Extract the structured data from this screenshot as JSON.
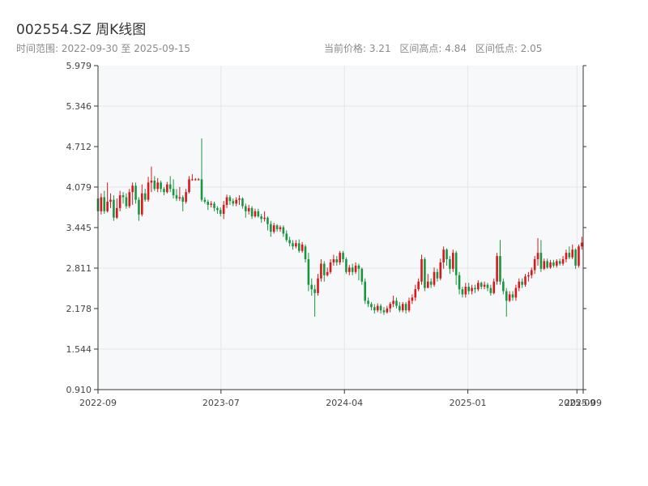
{
  "header": {
    "title": "002554.SZ 周K线图",
    "range_label": "时间范围: 2022-09-30 至 2025-09-15",
    "price_label": "当前价格: 3.21",
    "high_label": "区间高点: 4.84",
    "low_label": "区间低点: 2.05"
  },
  "colors": {
    "up": "#d7191c",
    "down": "#1a9641",
    "plot_bg": "#f7f8fa",
    "grid": "#e4e6ea",
    "axis": "#333333"
  },
  "chart_data": {
    "type": "candlestick",
    "title": "002554.SZ 周K线图",
    "xlabel": "",
    "ylabel": "",
    "ylim": [
      0.91,
      5.979
    ],
    "xlim": [
      "2022-09-30",
      "2025-09-15"
    ],
    "yticks": [
      "0.910",
      "1.544",
      "2.178",
      "2.811",
      "3.445",
      "4.079",
      "4.712",
      "5.346",
      "5.979"
    ],
    "xticks": [
      {
        "date": "2022-09-30",
        "label": "2022-09"
      },
      {
        "date": "2023-07-01",
        "label": "2023-07"
      },
      {
        "date": "2024-04-01",
        "label": "2024-04"
      },
      {
        "date": "2025-01-01",
        "label": "2025-01"
      },
      {
        "date": "2025-09-01",
        "label": "2025-09"
      },
      {
        "date": "2025-09-15",
        "label": "2025-09"
      }
    ],
    "grid": true,
    "candles": [
      [
        "2022-09-30",
        3.9,
        3.7,
        4.0,
        3.62
      ],
      [
        "2022-10-07",
        3.7,
        3.92,
        3.98,
        3.65
      ],
      [
        "2022-10-14",
        3.92,
        3.7,
        4.02,
        3.66
      ],
      [
        "2022-10-21",
        3.7,
        3.85,
        4.15,
        3.68
      ],
      [
        "2022-10-28",
        3.85,
        3.88,
        3.98,
        3.75
      ],
      [
        "2022-11-04",
        3.88,
        3.6,
        3.95,
        3.55
      ],
      [
        "2022-11-11",
        3.6,
        3.75,
        3.9,
        3.58
      ],
      [
        "2022-11-18",
        3.75,
        3.95,
        4.02,
        3.7
      ],
      [
        "2022-11-25",
        3.95,
        3.92,
        4.0,
        3.82
      ],
      [
        "2022-12-02",
        3.92,
        3.78,
        3.98,
        3.74
      ],
      [
        "2022-12-09",
        3.78,
        4.0,
        4.05,
        3.75
      ],
      [
        "2022-12-16",
        4.0,
        4.1,
        4.15,
        3.8
      ],
      [
        "2022-12-23",
        4.1,
        3.88,
        4.15,
        3.82
      ],
      [
        "2022-12-30",
        3.88,
        3.65,
        3.92,
        3.55
      ],
      [
        "2023-01-06",
        3.65,
        3.98,
        4.12,
        3.62
      ],
      [
        "2023-01-13",
        3.98,
        3.88,
        4.05,
        3.85
      ],
      [
        "2023-01-20",
        3.88,
        4.15,
        4.24,
        3.85
      ],
      [
        "2023-01-27",
        4.15,
        4.18,
        4.4,
        4.0
      ],
      [
        "2023-02-03",
        4.18,
        4.05,
        4.25,
        4.02
      ],
      [
        "2023-02-10",
        4.05,
        4.15,
        4.22,
        4.0
      ],
      [
        "2023-02-17",
        4.15,
        4.05,
        4.18,
        4.0
      ],
      [
        "2023-02-24",
        4.05,
        4.0,
        4.08,
        3.95
      ],
      [
        "2023-03-03",
        4.0,
        4.12,
        4.16,
        3.98
      ],
      [
        "2023-03-10",
        4.12,
        4.05,
        4.25,
        4.0
      ],
      [
        "2023-03-17",
        4.05,
        3.95,
        4.2,
        3.9
      ],
      [
        "2023-03-24",
        3.95,
        3.9,
        4.05,
        3.86
      ],
      [
        "2023-03-31",
        3.9,
        3.92,
        4.08,
        3.86
      ],
      [
        "2023-04-07",
        3.92,
        3.85,
        3.95,
        3.7
      ],
      [
        "2023-04-14",
        3.85,
        4.0,
        4.05,
        3.82
      ],
      [
        "2023-04-21",
        4.0,
        4.2,
        4.25,
        3.98
      ],
      [
        "2023-04-28",
        4.2,
        4.2,
        4.28,
        4.18
      ],
      [
        "2023-05-05",
        4.2,
        4.2,
        4.22,
        4.18
      ],
      [
        "2023-05-12",
        4.2,
        4.2,
        4.22,
        4.18
      ],
      [
        "2023-05-19",
        4.2,
        3.88,
        4.84,
        3.85
      ],
      [
        "2023-05-26",
        3.88,
        3.85,
        3.92,
        3.82
      ],
      [
        "2023-06-02",
        3.85,
        3.8,
        3.88,
        3.72
      ],
      [
        "2023-06-09",
        3.8,
        3.82,
        3.86,
        3.76
      ],
      [
        "2023-06-16",
        3.82,
        3.75,
        3.85,
        3.7
      ],
      [
        "2023-06-23",
        3.75,
        3.72,
        3.78,
        3.66
      ],
      [
        "2023-06-30",
        3.72,
        3.66,
        3.76,
        3.62
      ],
      [
        "2023-07-07",
        3.66,
        3.8,
        3.86,
        3.58
      ],
      [
        "2023-07-14",
        3.8,
        3.92,
        3.96,
        3.75
      ],
      [
        "2023-07-21",
        3.92,
        3.86,
        3.95,
        3.8
      ],
      [
        "2023-07-28",
        3.86,
        3.82,
        3.9,
        3.78
      ],
      [
        "2023-08-04",
        3.82,
        3.88,
        3.92,
        3.78
      ],
      [
        "2023-08-11",
        3.88,
        3.9,
        3.95,
        3.8
      ],
      [
        "2023-08-18",
        3.9,
        3.78,
        3.92,
        3.74
      ],
      [
        "2023-08-25",
        3.78,
        3.7,
        3.82,
        3.6
      ],
      [
        "2023-09-01",
        3.7,
        3.75,
        3.8,
        3.65
      ],
      [
        "2023-09-08",
        3.75,
        3.62,
        3.78,
        3.58
      ],
      [
        "2023-09-15",
        3.62,
        3.7,
        3.74,
        3.6
      ],
      [
        "2023-09-22",
        3.7,
        3.62,
        3.74,
        3.6
      ],
      [
        "2023-09-29",
        3.62,
        3.58,
        3.66,
        3.52
      ],
      [
        "2023-10-06",
        3.58,
        3.6,
        3.7,
        3.54
      ],
      [
        "2023-10-13",
        3.6,
        3.5,
        3.62,
        3.4
      ],
      [
        "2023-10-20",
        3.5,
        3.38,
        3.55,
        3.3
      ],
      [
        "2023-10-27",
        3.38,
        3.48,
        3.52,
        3.35
      ],
      [
        "2023-11-03",
        3.48,
        3.42,
        3.5,
        3.38
      ],
      [
        "2023-11-10",
        3.42,
        3.45,
        3.48,
        3.38
      ],
      [
        "2023-11-17",
        3.45,
        3.35,
        3.48,
        3.3
      ],
      [
        "2023-11-24",
        3.35,
        3.25,
        3.4,
        3.22
      ],
      [
        "2023-12-01",
        3.25,
        3.2,
        3.3,
        3.15
      ],
      [
        "2023-12-08",
        3.2,
        3.15,
        3.25,
        3.1
      ],
      [
        "2023-12-15",
        3.15,
        3.2,
        3.25,
        3.12
      ],
      [
        "2023-12-22",
        3.2,
        3.08,
        3.26,
        3.05
      ],
      [
        "2023-12-29",
        3.08,
        3.18,
        3.22,
        3.05
      ],
      [
        "2024-01-05",
        3.15,
        2.95,
        3.18,
        2.9
      ],
      [
        "2024-01-12",
        2.95,
        2.55,
        3.05,
        2.45
      ],
      [
        "2024-01-19",
        2.55,
        2.48,
        2.65,
        2.38
      ],
      [
        "2024-01-26",
        2.48,
        2.42,
        2.55,
        2.05
      ],
      [
        "2024-02-02",
        2.42,
        2.65,
        2.72,
        2.38
      ],
      [
        "2024-02-09",
        2.65,
        2.88,
        2.95,
        2.6
      ],
      [
        "2024-02-16",
        2.88,
        2.7,
        2.92,
        2.6
      ],
      [
        "2024-02-23",
        2.7,
        2.75,
        2.82,
        2.68
      ],
      [
        "2024-03-01",
        2.75,
        2.9,
        2.95,
        2.72
      ],
      [
        "2024-03-08",
        2.9,
        2.95,
        3.02,
        2.85
      ],
      [
        "2024-03-15",
        2.95,
        2.9,
        3.0,
        2.85
      ],
      [
        "2024-03-22",
        2.9,
        3.05,
        3.08,
        2.86
      ],
      [
        "2024-03-29",
        3.05,
        2.95,
        3.08,
        2.9
      ],
      [
        "2024-04-05",
        2.95,
        2.75,
        2.98,
        2.72
      ],
      [
        "2024-04-12",
        2.75,
        2.82,
        2.86,
        2.7
      ],
      [
        "2024-04-19",
        2.82,
        2.75,
        2.88,
        2.7
      ],
      [
        "2024-04-26",
        2.75,
        2.85,
        2.9,
        2.72
      ],
      [
        "2024-05-03",
        2.85,
        2.8,
        2.88,
        2.62
      ],
      [
        "2024-05-10",
        2.8,
        2.6,
        2.82,
        2.55
      ],
      [
        "2024-05-17",
        2.6,
        2.3,
        2.65,
        2.25
      ],
      [
        "2024-05-24",
        2.3,
        2.25,
        2.35,
        2.2
      ],
      [
        "2024-05-31",
        2.25,
        2.2,
        2.28,
        2.15
      ],
      [
        "2024-06-07",
        2.2,
        2.15,
        2.25,
        2.1
      ],
      [
        "2024-06-14",
        2.15,
        2.22,
        2.26,
        2.12
      ],
      [
        "2024-06-21",
        2.22,
        2.15,
        2.25,
        2.1
      ],
      [
        "2024-06-28",
        2.15,
        2.12,
        2.2,
        2.08
      ],
      [
        "2024-07-05",
        2.12,
        2.18,
        2.22,
        2.1
      ],
      [
        "2024-07-12",
        2.18,
        2.25,
        2.28,
        2.12
      ],
      [
        "2024-07-19",
        2.25,
        2.3,
        2.38,
        2.2
      ],
      [
        "2024-07-26",
        2.3,
        2.22,
        2.35,
        2.18
      ],
      [
        "2024-08-02",
        2.22,
        2.15,
        2.28,
        2.12
      ],
      [
        "2024-08-09",
        2.15,
        2.25,
        2.28,
        2.12
      ],
      [
        "2024-08-16",
        2.25,
        2.15,
        2.28,
        2.1
      ],
      [
        "2024-08-23",
        2.15,
        2.3,
        2.35,
        2.12
      ],
      [
        "2024-08-30",
        2.3,
        2.35,
        2.4,
        2.25
      ],
      [
        "2024-09-06",
        2.35,
        2.48,
        2.55,
        2.3
      ],
      [
        "2024-09-13",
        2.48,
        2.6,
        2.65,
        2.45
      ],
      [
        "2024-09-20",
        2.6,
        2.95,
        3.02,
        2.55
      ],
      [
        "2024-09-27",
        2.95,
        2.5,
        2.98,
        2.45
      ],
      [
        "2024-10-04",
        2.5,
        2.6,
        2.72,
        2.5
      ],
      [
        "2024-10-11",
        2.6,
        2.55,
        2.65,
        2.5
      ],
      [
        "2024-10-18",
        2.55,
        2.75,
        2.82,
        2.52
      ],
      [
        "2024-10-25",
        2.75,
        2.65,
        2.8,
        2.6
      ],
      [
        "2024-11-01",
        2.65,
        2.9,
        2.96,
        2.62
      ],
      [
        "2024-11-08",
        2.9,
        3.1,
        3.15,
        2.8
      ],
      [
        "2024-11-15",
        3.1,
        2.95,
        3.12,
        2.85
      ],
      [
        "2024-11-22",
        2.95,
        2.8,
        3.0,
        2.72
      ],
      [
        "2024-11-29",
        2.8,
        3.05,
        3.1,
        2.75
      ],
      [
        "2024-12-06",
        3.05,
        2.7,
        3.08,
        2.55
      ],
      [
        "2024-12-13",
        2.7,
        2.48,
        2.75,
        2.4
      ],
      [
        "2024-12-20",
        2.48,
        2.4,
        2.52,
        2.35
      ],
      [
        "2024-12-27",
        2.4,
        2.52,
        2.58,
        2.35
      ],
      [
        "2025-01-03",
        2.52,
        2.45,
        2.58,
        2.4
      ],
      [
        "2025-01-10",
        2.45,
        2.5,
        2.55,
        2.4
      ],
      [
        "2025-01-17",
        2.5,
        2.48,
        2.55,
        2.42
      ],
      [
        "2025-01-24",
        2.48,
        2.58,
        2.62,
        2.45
      ],
      [
        "2025-01-31",
        2.58,
        2.52,
        2.6,
        2.48
      ],
      [
        "2025-02-07",
        2.52,
        2.55,
        2.6,
        2.48
      ],
      [
        "2025-02-14",
        2.55,
        2.5,
        2.58,
        2.45
      ],
      [
        "2025-02-21",
        2.5,
        2.42,
        2.55,
        2.38
      ],
      [
        "2025-02-28",
        2.42,
        2.6,
        2.65,
        2.4
      ],
      [
        "2025-03-07",
        2.6,
        3.0,
        3.05,
        2.55
      ],
      [
        "2025-03-14",
        3.0,
        2.6,
        3.25,
        2.55
      ],
      [
        "2025-03-21",
        2.6,
        2.45,
        2.65,
        2.4
      ],
      [
        "2025-03-28",
        2.45,
        2.3,
        2.5,
        2.05
      ],
      [
        "2025-04-04",
        2.3,
        2.4,
        2.45,
        2.28
      ],
      [
        "2025-04-11",
        2.4,
        2.35,
        2.45,
        2.3
      ],
      [
        "2025-04-18",
        2.35,
        2.5,
        2.55,
        2.3
      ],
      [
        "2025-04-25",
        2.5,
        2.6,
        2.65,
        2.45
      ],
      [
        "2025-05-02",
        2.6,
        2.55,
        2.65,
        2.5
      ],
      [
        "2025-05-09",
        2.55,
        2.68,
        2.72,
        2.52
      ],
      [
        "2025-05-16",
        2.68,
        2.7,
        2.75,
        2.6
      ],
      [
        "2025-05-23",
        2.7,
        2.78,
        2.82,
        2.65
      ],
      [
        "2025-05-30",
        2.78,
        2.95,
        3.0,
        2.72
      ],
      [
        "2025-06-06",
        2.95,
        3.05,
        3.28,
        2.85
      ],
      [
        "2025-06-13",
        3.05,
        2.8,
        3.25,
        2.75
      ],
      [
        "2025-06-20",
        2.8,
        2.92,
        2.96,
        2.78
      ],
      [
        "2025-06-27",
        2.92,
        2.82,
        2.96,
        2.8
      ],
      [
        "2025-07-04",
        2.82,
        2.9,
        2.94,
        2.8
      ],
      [
        "2025-07-11",
        2.9,
        2.85,
        2.94,
        2.82
      ],
      [
        "2025-07-18",
        2.85,
        2.92,
        2.95,
        2.82
      ],
      [
        "2025-07-25",
        2.92,
        2.88,
        2.96,
        2.85
      ],
      [
        "2025-08-01",
        2.88,
        2.95,
        3.0,
        2.85
      ],
      [
        "2025-08-08",
        2.95,
        3.05,
        3.1,
        2.9
      ],
      [
        "2025-08-15",
        3.05,
        2.98,
        3.15,
        2.95
      ],
      [
        "2025-08-22",
        2.98,
        3.1,
        3.18,
        2.95
      ],
      [
        "2025-08-29",
        3.1,
        2.85,
        3.12,
        2.8
      ],
      [
        "2025-09-05",
        2.85,
        3.15,
        3.18,
        2.82
      ],
      [
        "2025-09-12",
        3.15,
        3.21,
        3.3,
        3.1
      ]
    ]
  }
}
